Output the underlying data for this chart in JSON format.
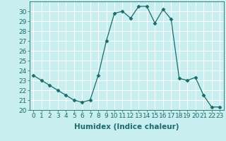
{
  "x": [
    0,
    1,
    2,
    3,
    4,
    5,
    6,
    7,
    8,
    9,
    10,
    11,
    12,
    13,
    14,
    15,
    16,
    17,
    18,
    19,
    20,
    21,
    22,
    23
  ],
  "y": [
    23.5,
    23.0,
    22.5,
    22.0,
    21.5,
    21.0,
    20.8,
    21.0,
    23.5,
    27.0,
    29.8,
    30.0,
    29.3,
    30.5,
    30.5,
    28.8,
    30.2,
    29.2,
    23.2,
    23.0,
    23.3,
    21.5,
    20.3,
    20.3
  ],
  "line_color": "#1a6b6b",
  "marker": "D",
  "marker_size": 2.5,
  "bg_color": "#c8eef0",
  "grid_color": "#ffffff",
  "xlabel": "Humidex (Indice chaleur)",
  "ylim": [
    20,
    31
  ],
  "xlim": [
    -0.5,
    23.5
  ],
  "yticks": [
    20,
    21,
    22,
    23,
    24,
    25,
    26,
    27,
    28,
    29,
    30
  ],
  "xticks": [
    0,
    1,
    2,
    3,
    4,
    5,
    6,
    7,
    8,
    9,
    10,
    11,
    12,
    13,
    14,
    15,
    16,
    17,
    18,
    19,
    20,
    21,
    22,
    23
  ],
  "title_color": "#1a6b6b",
  "xlabel_fontsize": 7.5,
  "tick_fontsize": 6.5
}
